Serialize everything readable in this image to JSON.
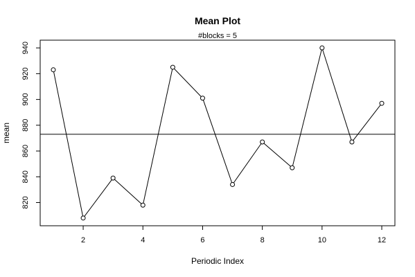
{
  "chart_data": {
    "type": "line",
    "title": "Mean Plot",
    "subtitle": "#blocks =  5",
    "xlabel": "Periodic Index",
    "ylabel": "mean",
    "x": [
      1,
      2,
      3,
      4,
      5,
      6,
      7,
      8,
      9,
      10,
      11,
      12
    ],
    "series": [
      {
        "values": [
          923,
          808,
          839,
          818,
          925,
          901,
          834,
          867,
          847,
          940,
          867,
          897
        ]
      }
    ],
    "reference_line": {
      "orientation": "horizontal",
      "value": 873
    },
    "x_ticks": [
      2,
      4,
      6,
      8,
      10,
      12
    ],
    "y_ticks": [
      820,
      840,
      860,
      880,
      900,
      920,
      940
    ],
    "xlim": [
      0.56,
      12.44
    ],
    "ylim": [
      802,
      946
    ],
    "marker": "open-circle",
    "grid": false,
    "colors": {
      "line": "#000000",
      "reference": "#000000",
      "background": "#ffffff"
    }
  }
}
